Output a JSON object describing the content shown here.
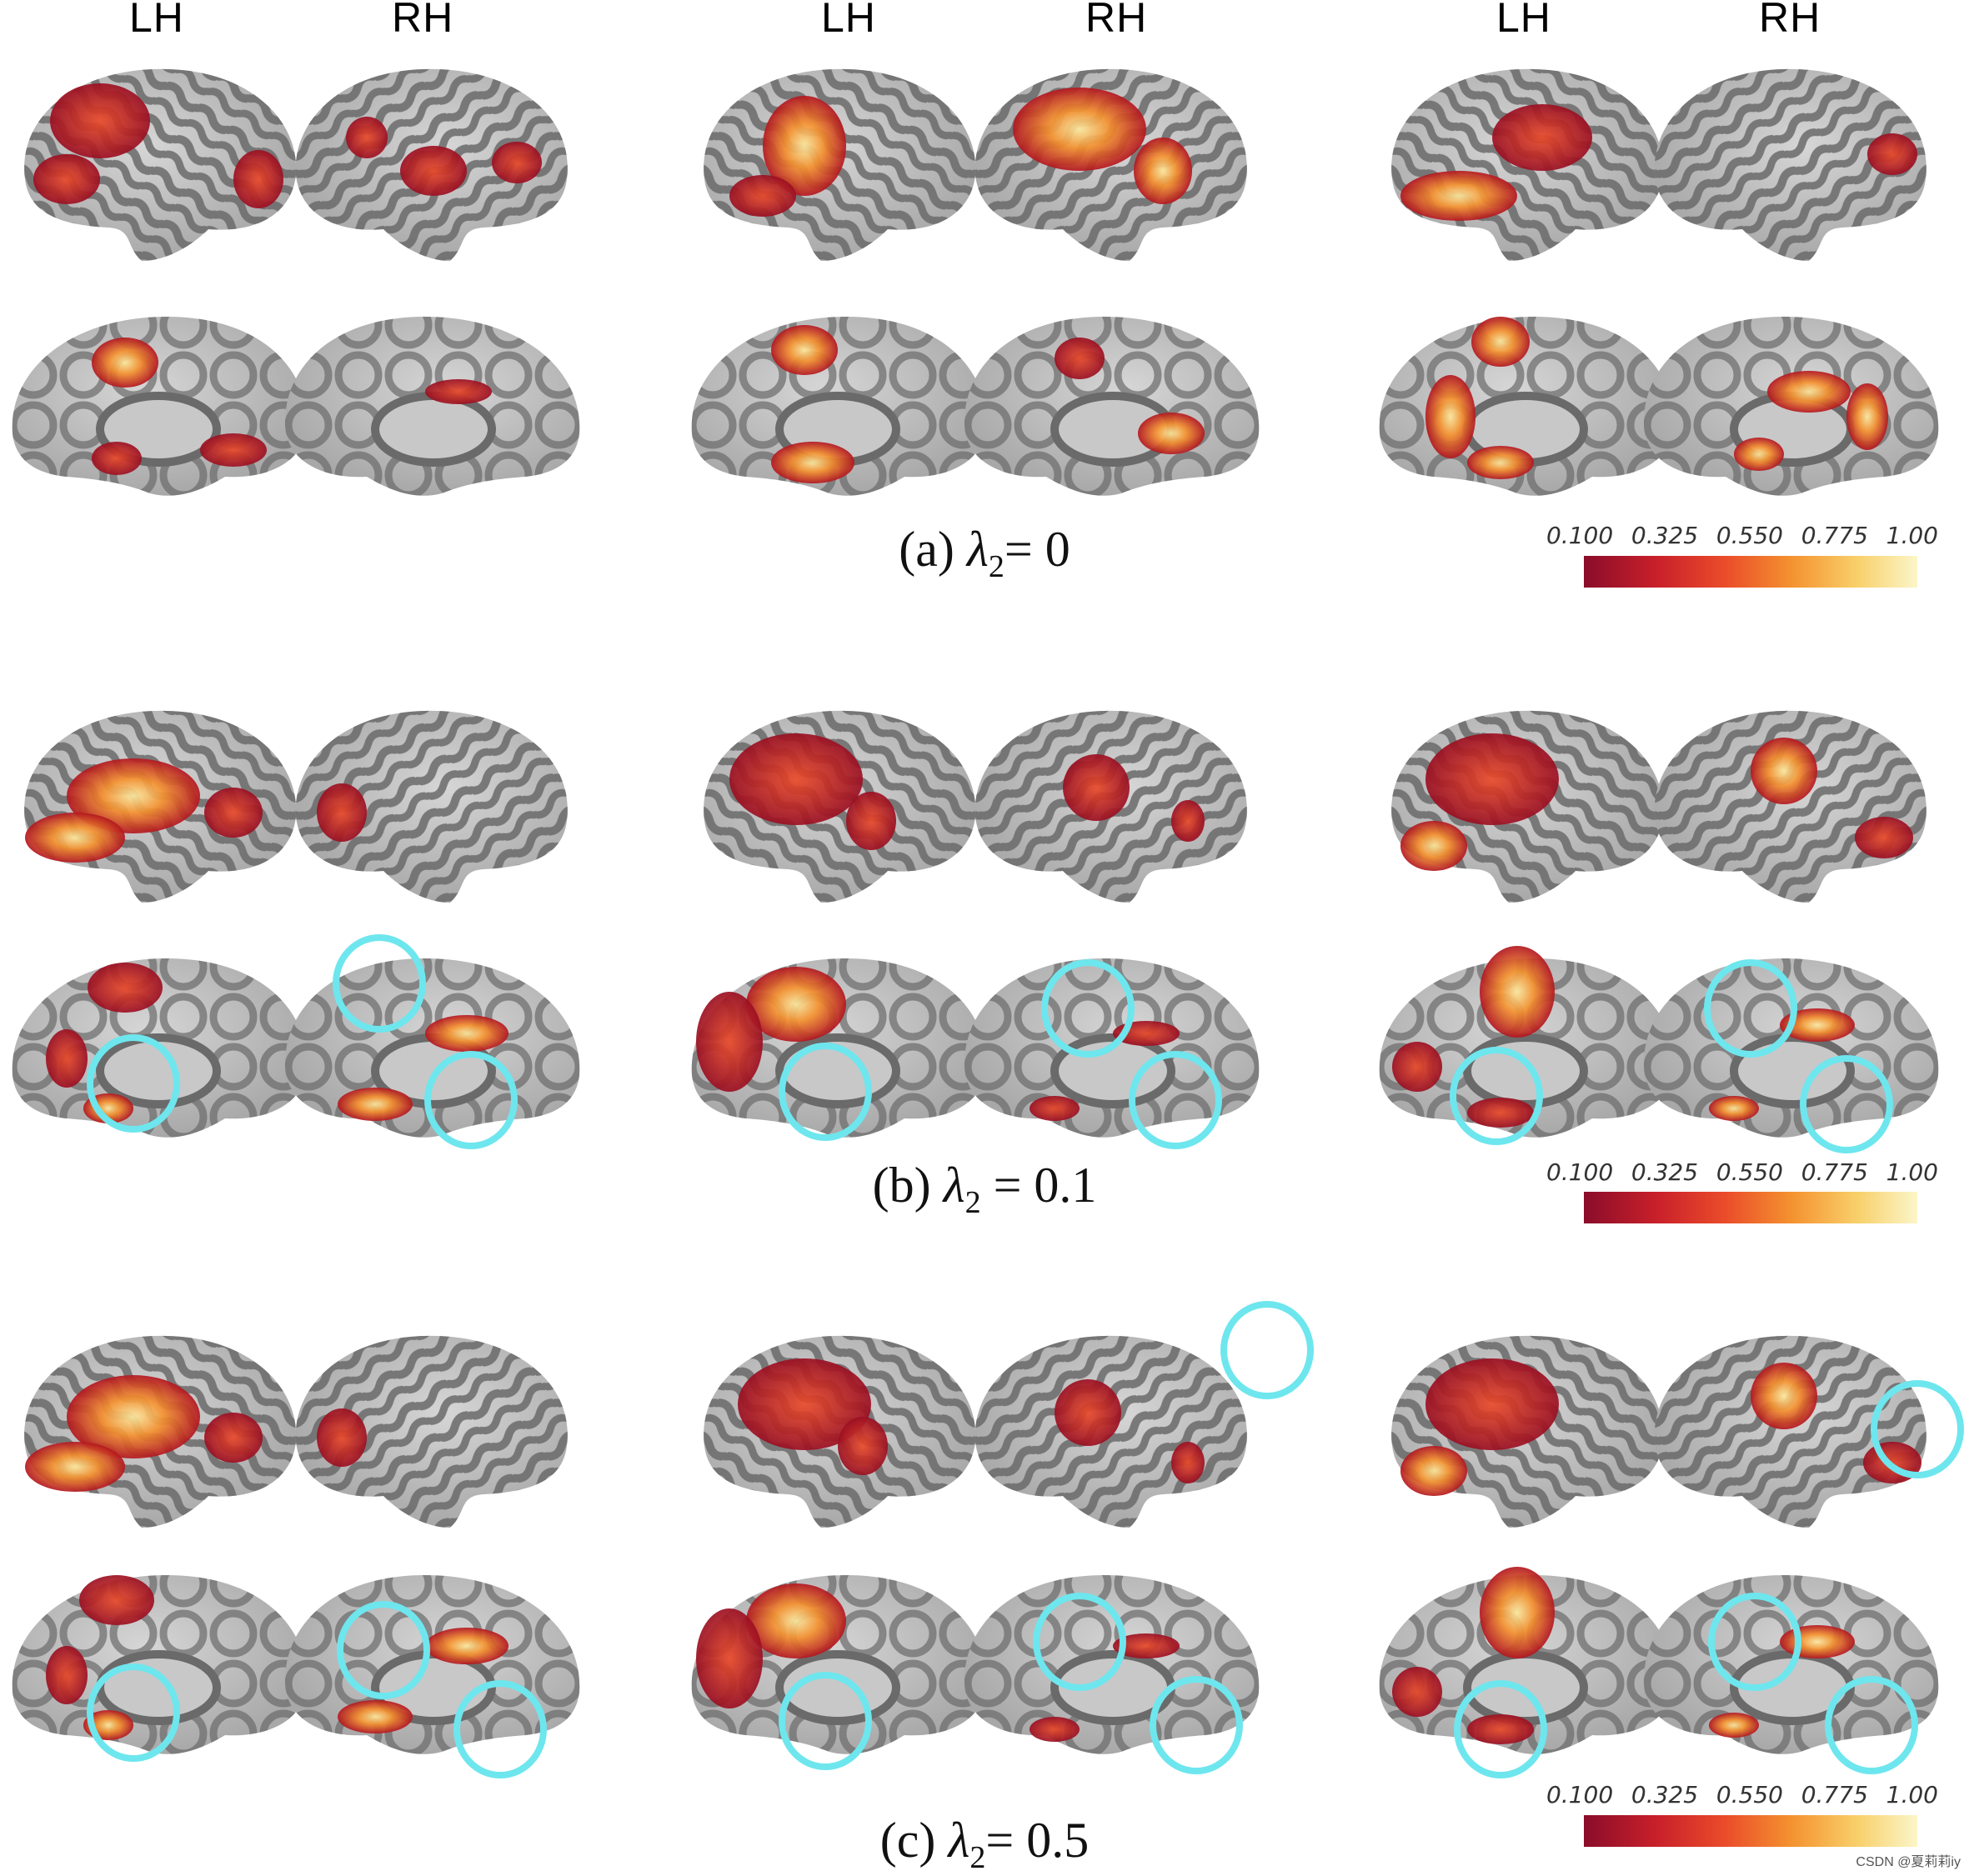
{
  "hemisphere_labels": [
    "LH",
    "RH",
    "LH",
    "RH",
    "LH",
    "RH"
  ],
  "panels": [
    {
      "caption_prefix": "(a) ",
      "lambda_symbol": "λ",
      "lambda_sub": "2",
      "caption_suffix": "= 0"
    },
    {
      "caption_prefix": "(b) ",
      "lambda_symbol": "λ",
      "lambda_sub": "2",
      "caption_suffix": " = 0.1"
    },
    {
      "caption_prefix": "(c) ",
      "lambda_symbol": "λ",
      "lambda_sub": "2",
      "caption_suffix": "= 0.5"
    }
  ],
  "colorbar": {
    "ticks": [
      "0.100",
      "0.325",
      "0.550",
      "0.775",
      "1.00"
    ],
    "colors": [
      "#8a0d2a",
      "#c9202a",
      "#ea4b2a",
      "#f4912f",
      "#f8d06a",
      "#fbf6c9"
    ]
  },
  "palette": {
    "cortex_light": "#bdbdbd",
    "cortex_dark": "#6a6a6a",
    "activation_dark": "#b3161f",
    "activation_mid": "#e8492a",
    "activation_hot": "#f6b84a",
    "activation_pale": "#fbe9a0",
    "highlight_circle": "#6ee6ee"
  },
  "watermark": "CSDN @夏莉莉iy"
}
